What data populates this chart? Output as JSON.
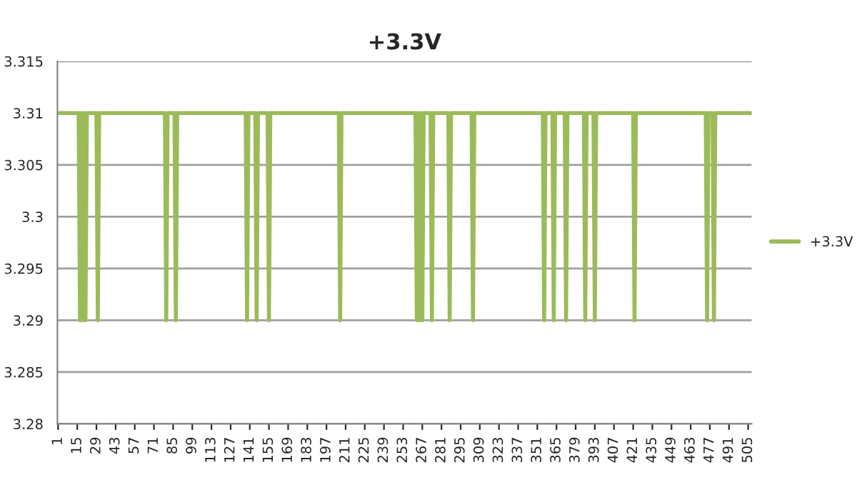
{
  "chart_data": {
    "type": "line",
    "title": "+3.3V",
    "x": [
      1,
      16,
      17,
      18,
      19,
      20,
      21,
      22,
      29,
      30,
      31,
      79,
      80,
      81,
      86,
      87,
      88,
      138,
      139,
      140,
      145,
      146,
      147,
      154,
      155,
      156,
      206,
      207,
      208,
      262,
      263,
      264,
      265,
      266,
      267,
      268,
      273,
      274,
      275,
      286,
      287,
      288,
      303,
      304,
      305,
      355,
      356,
      357,
      362,
      363,
      364,
      371,
      372,
      373,
      385,
      386,
      387,
      392,
      393,
      394,
      421,
      422,
      423,
      474,
      475,
      476,
      479,
      480,
      481,
      507
    ],
    "series": [
      {
        "name": "+3.3V",
        "color": "#9bbb59",
        "values": [
          3.31,
          3.31,
          3.29,
          3.31,
          3.29,
          3.31,
          3.29,
          3.31,
          3.31,
          3.29,
          3.31,
          3.31,
          3.29,
          3.31,
          3.31,
          3.29,
          3.31,
          3.31,
          3.29,
          3.31,
          3.31,
          3.29,
          3.31,
          3.31,
          3.29,
          3.31,
          3.31,
          3.29,
          3.31,
          3.31,
          3.29,
          3.31,
          3.29,
          3.31,
          3.29,
          3.31,
          3.31,
          3.29,
          3.31,
          3.31,
          3.29,
          3.31,
          3.31,
          3.29,
          3.31,
          3.31,
          3.29,
          3.31,
          3.31,
          3.29,
          3.31,
          3.31,
          3.29,
          3.31,
          3.31,
          3.29,
          3.31,
          3.31,
          3.29,
          3.31,
          3.31,
          3.29,
          3.31,
          3.31,
          3.29,
          3.31,
          3.31,
          3.29,
          3.31,
          3.31
        ]
      }
    ],
    "xlim": [
      0.5,
      507.5
    ],
    "xticks": [
      1,
      15,
      29,
      43,
      57,
      71,
      85,
      99,
      113,
      127,
      141,
      155,
      169,
      183,
      197,
      211,
      225,
      239,
      253,
      267,
      281,
      295,
      309,
      323,
      337,
      351,
      365,
      379,
      393,
      407,
      421,
      435,
      449,
      463,
      477,
      491,
      505
    ],
    "ylim": [
      3.28,
      3.315
    ],
    "yticks": [
      3.28,
      3.285,
      3.29,
      3.295,
      3.3,
      3.305,
      3.31,
      3.315
    ],
    "grid": "y",
    "legend": "right",
    "marker": "none",
    "line_style": "solid"
  }
}
